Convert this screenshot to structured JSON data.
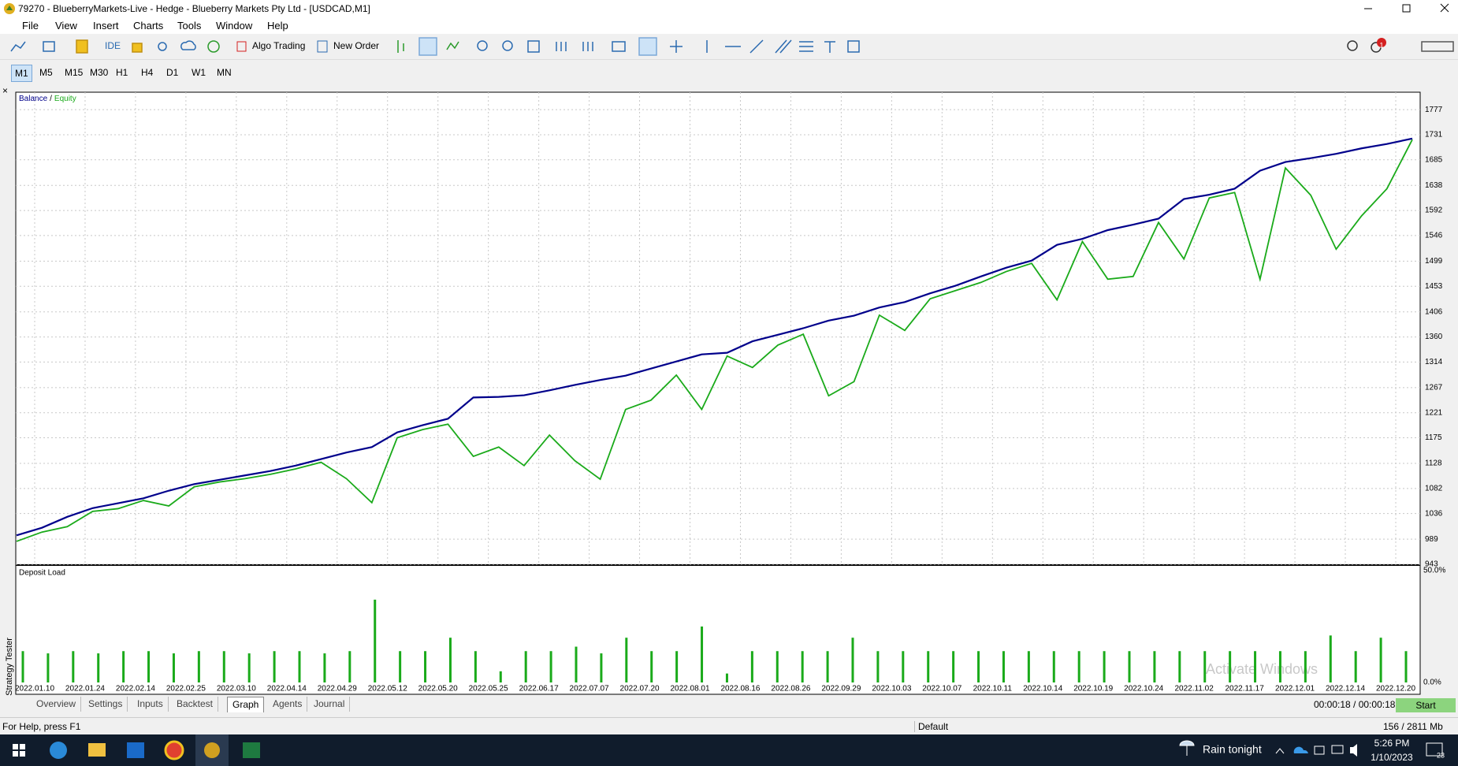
{
  "window": {
    "title": "79270 - BlueberryMarkets-Live - Hedge - Blueberry Markets Pty Ltd - [USDCAD,M1]",
    "menu": [
      "File",
      "View",
      "Insert",
      "Charts",
      "Tools",
      "Window",
      "Help"
    ]
  },
  "toolbar": {
    "buttons": [
      "IDE",
      "Algo Trading",
      "New Order"
    ],
    "badge": "1"
  },
  "timeframes": [
    "M1",
    "M5",
    "M15",
    "M30",
    "H1",
    "H4",
    "D1",
    "W1",
    "MN"
  ],
  "chart_data": [
    {
      "type": "line",
      "legend_separator": "/",
      "series": [
        {
          "name": "Balance",
          "color": "#00008b",
          "values": [
            996,
            1010,
            1030,
            1046,
            1055,
            1064,
            1078,
            1090,
            1098,
            1106,
            1114,
            1124,
            1136,
            1148,
            1158,
            1185,
            1198,
            1210,
            1249,
            1250,
            1253,
            1262,
            1272,
            1281,
            1289,
            1302,
            1315,
            1328,
            1331,
            1352,
            1364,
            1376,
            1390,
            1399,
            1414,
            1424,
            1440,
            1454,
            1471,
            1487,
            1500,
            1529,
            1540,
            1556,
            1566,
            1577,
            1613,
            1621,
            1632,
            1665,
            1681,
            1688,
            1696,
            1706,
            1714,
            1724
          ]
        },
        {
          "name": "Equity",
          "color": "#1aaa1a",
          "values": [
            985,
            1002,
            1012,
            1040,
            1045,
            1060,
            1050,
            1085,
            1094,
            1100,
            1108,
            1118,
            1130,
            1100,
            1056,
            1175,
            1190,
            1200,
            1141,
            1158,
            1124,
            1180,
            1133,
            1099,
            1227,
            1244,
            1290,
            1227,
            1325,
            1304,
            1345,
            1365,
            1252,
            1278,
            1400,
            1372,
            1430,
            1445,
            1460,
            1480,
            1495,
            1428,
            1535,
            1466,
            1471,
            1570,
            1503,
            1615,
            1625,
            1466,
            1670,
            1620,
            1521,
            1582,
            1632,
            1722
          ]
        }
      ],
      "ylim": [
        943,
        1809
      ],
      "yticks": [
        943,
        989,
        1036,
        1082,
        1128,
        1175,
        1221,
        1267,
        1314,
        1360,
        1406,
        1453,
        1499,
        1546,
        1592,
        1638,
        1685,
        1731,
        1777
      ],
      "grid": true
    },
    {
      "type": "bar",
      "title": "Deposit Load",
      "color": "#1aaa1a",
      "values": [
        14,
        13,
        14,
        13,
        14,
        14,
        13,
        14,
        14,
        13,
        14,
        14,
        13,
        14,
        37,
        14,
        14,
        20,
        14,
        5,
        14,
        14,
        16,
        13,
        20,
        14,
        14,
        25,
        4,
        14,
        14,
        14,
        14,
        20,
        14,
        14,
        14,
        14,
        14,
        14,
        14,
        14,
        14,
        14,
        14,
        14,
        14,
        14,
        14,
        14,
        14,
        14,
        21,
        14,
        20,
        14
      ],
      "ylim": [
        0,
        50
      ],
      "yticks": [
        {
          "value": 0,
          "label": "0.0%"
        },
        {
          "value": 50,
          "label": "50.0%"
        }
      ],
      "x_labels": [
        "2022.01.10",
        "2022.01.24",
        "2022.02.14",
        "2022.02.25",
        "2022.03.10",
        "2022.04.14",
        "2022.04.29",
        "2022.05.12",
        "2022.05.20",
        "2022.05.25",
        "2022.06.17",
        "2022.07.07",
        "2022.07.20",
        "2022.08.01",
        "2022.08.16",
        "2022.08.26",
        "2022.09.29",
        "2022.10.03",
        "2022.10.07",
        "2022.10.11",
        "2022.10.14",
        "2022.10.19",
        "2022.10.24",
        "2022.11.02",
        "2022.11.17",
        "2022.12.01",
        "2022.12.14",
        "2022.12.20"
      ]
    }
  ],
  "side_panel_label": "Strategy Tester",
  "tabs": [
    "Overview",
    "Settings",
    "Inputs",
    "Backtest",
    "Graph",
    "Agents",
    "Journal"
  ],
  "active_tab": "Graph",
  "timer": "00:00:18 / 00:00:18",
  "start_button": "Start",
  "status_bar": {
    "help": "For Help, press F1",
    "profile": "Default",
    "memory": "156 / 2811 Mb"
  },
  "taskbar": {
    "weather": "Rain tonight",
    "time": "5:26 PM",
    "date": "1/10/2023",
    "notifications": "23"
  },
  "watermark": "Activate Windows"
}
